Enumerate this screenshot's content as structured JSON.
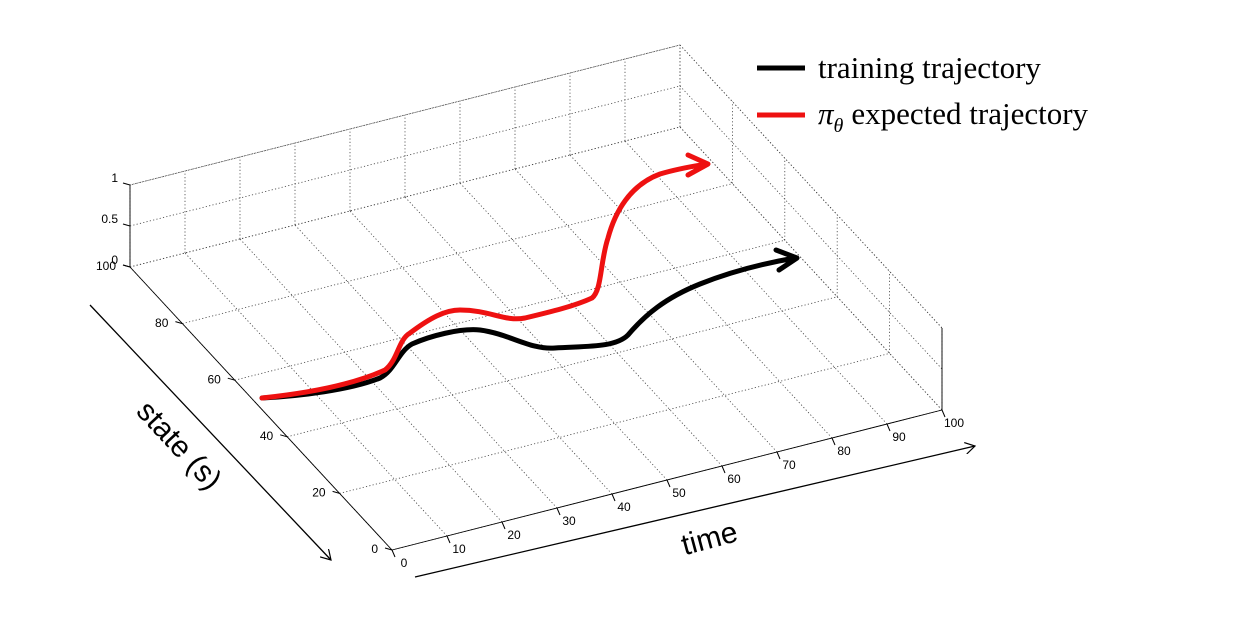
{
  "chart_data": {
    "type": "line3d",
    "x_label": "time",
    "y_label": "state (s)",
    "xticks": [
      0,
      10,
      20,
      30,
      40,
      50,
      60,
      70,
      80,
      90,
      100
    ],
    "yticks": [
      0,
      20,
      40,
      60,
      80,
      100
    ],
    "zticks": [
      0,
      0.5,
      1
    ],
    "xlim": [
      0,
      100
    ],
    "ylim": [
      0,
      100
    ],
    "zlim": [
      0,
      1
    ],
    "grid": true,
    "series": [
      {
        "name": "training trajectory",
        "color": "#000000"
      },
      {
        "name_symbol": "π",
        "name_subscript": "θ",
        "name": "expected trajectory",
        "color": "#ee1111"
      }
    ]
  }
}
